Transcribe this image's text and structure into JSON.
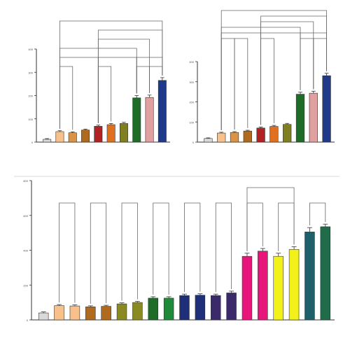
{
  "chart_data": [
    {
      "type": "bar",
      "title": "",
      "xlabel": "",
      "ylabel": "",
      "ylim": [
        0,
        400
      ],
      "yticks": [
        0,
        100,
        200,
        300,
        400
      ],
      "grid": false,
      "values": [
        12,
        45,
        40,
        52,
        68,
        75,
        80,
        190,
        192,
        265
      ],
      "errors": [
        3,
        4,
        4,
        4,
        5,
        5,
        5,
        10,
        10,
        12
      ],
      "colors": [
        "#d9d9d9",
        "#f8c08a",
        "#d99447",
        "#b06a1e",
        "#b22222",
        "#e07020",
        "#7f7f1f",
        "#1f6b28",
        "#e0a0a0",
        "#1f3a8a"
      ],
      "brackets": [
        {
          "from": 1,
          "to": 2,
          "level": 0,
          "label": ""
        },
        {
          "from": 4,
          "to": 5,
          "level": 0,
          "label": ""
        },
        {
          "from": 7,
          "to": 8,
          "level": 0,
          "label": ""
        },
        {
          "from": 8,
          "to": 9,
          "level": 0,
          "label": ""
        },
        {
          "from": 1,
          "to": 4,
          "level": 1,
          "label": ""
        },
        {
          "from": 4,
          "to": 7,
          "level": 1,
          "label": ""
        },
        {
          "from": 7,
          "to": 9,
          "level": 1,
          "label": ""
        },
        {
          "from": 1,
          "to": 7,
          "level": 2,
          "label": ""
        },
        {
          "from": 4,
          "to": 8,
          "level": 3,
          "label": ""
        },
        {
          "from": 4,
          "to": 9,
          "level": 4,
          "label": ""
        },
        {
          "from": 1,
          "to": 9,
          "level": 5,
          "label": ""
        }
      ]
    },
    {
      "type": "bar",
      "title": "",
      "xlabel": "",
      "ylabel": "",
      "ylim": [
        0,
        400
      ],
      "yticks": [
        0,
        100,
        200,
        300,
        400
      ],
      "grid": false,
      "values": [
        18,
        45,
        48,
        55,
        70,
        78,
        88,
        238,
        243,
        330
      ],
      "errors": [
        3,
        4,
        4,
        4,
        5,
        5,
        5,
        10,
        10,
        12
      ],
      "colors": [
        "#d9d9d9",
        "#f8c08a",
        "#d99447",
        "#b06a1e",
        "#b22222",
        "#e07020",
        "#7f7f1f",
        "#1f6b28",
        "#e0a0a0",
        "#1f3a8a"
      ],
      "brackets": [
        {
          "from": 1,
          "to": 2,
          "level": 0,
          "label": ""
        },
        {
          "from": 2,
          "to": 3,
          "level": 0,
          "label": ""
        },
        {
          "from": 4,
          "to": 5,
          "level": 0,
          "label": ""
        },
        {
          "from": 7,
          "to": 8,
          "level": 0,
          "label": ""
        },
        {
          "from": 8,
          "to": 9,
          "level": 0,
          "label": ""
        },
        {
          "from": 1,
          "to": 4,
          "level": 1,
          "label": ""
        },
        {
          "from": 4,
          "to": 7,
          "level": 1,
          "label": ""
        },
        {
          "from": 7,
          "to": 9,
          "level": 1,
          "label": ""
        },
        {
          "from": 1,
          "to": 7,
          "level": 2,
          "label": ""
        },
        {
          "from": 4,
          "to": 8,
          "level": 3,
          "label": ""
        },
        {
          "from": 4,
          "to": 9,
          "level": 4,
          "label": ""
        },
        {
          "from": 1,
          "to": 9,
          "level": 5,
          "label": ""
        }
      ]
    },
    {
      "type": "bar",
      "title": "",
      "xlabel": "",
      "ylabel": "",
      "ylim": [
        0,
        800
      ],
      "yticks": [
        0,
        200,
        400,
        600,
        800
      ],
      "grid": false,
      "values": [
        40,
        82,
        80,
        75,
        78,
        92,
        100,
        125,
        125,
        140,
        142,
        140,
        155,
        365,
        395,
        365,
        405,
        505,
        535
      ],
      "errors": [
        6,
        6,
        6,
        6,
        6,
        6,
        6,
        8,
        8,
        8,
        8,
        8,
        10,
        18,
        15,
        18,
        15,
        25,
        15
      ],
      "colors": [
        "#d9d9d9",
        "#f8c08a",
        "#f8c08a",
        "#b06a1e",
        "#b06a1e",
        "#8a8a22",
        "#8a8a22",
        "#1f6b28",
        "#1f8a3a",
        "#1f2f7a",
        "#1f2f7a",
        "#3a2a6a",
        "#3a2a6a",
        "#e8167a",
        "#e8167a",
        "#f2f21a",
        "#f2f21a",
        "#1f5f6a",
        "#1f6b4a"
      ],
      "brackets": [
        {
          "from": 1,
          "to": 2,
          "level": 0,
          "label": ""
        },
        {
          "from": 3,
          "to": 4,
          "level": 0,
          "label": ""
        },
        {
          "from": 5,
          "to": 6,
          "level": 0,
          "label": ""
        },
        {
          "from": 7,
          "to": 8,
          "level": 0,
          "label": ""
        },
        {
          "from": 9,
          "to": 10,
          "level": 0,
          "label": ""
        },
        {
          "from": 11,
          "to": 12,
          "level": 0,
          "label": ""
        },
        {
          "from": 13,
          "to": 14,
          "level": 0,
          "label": ""
        },
        {
          "from": 15,
          "to": 16,
          "level": 0,
          "label": ""
        },
        {
          "from": 17,
          "to": 18,
          "level": 0,
          "label": ""
        },
        {
          "from": 13,
          "to": 16,
          "level": 1,
          "label": ""
        }
      ]
    }
  ]
}
